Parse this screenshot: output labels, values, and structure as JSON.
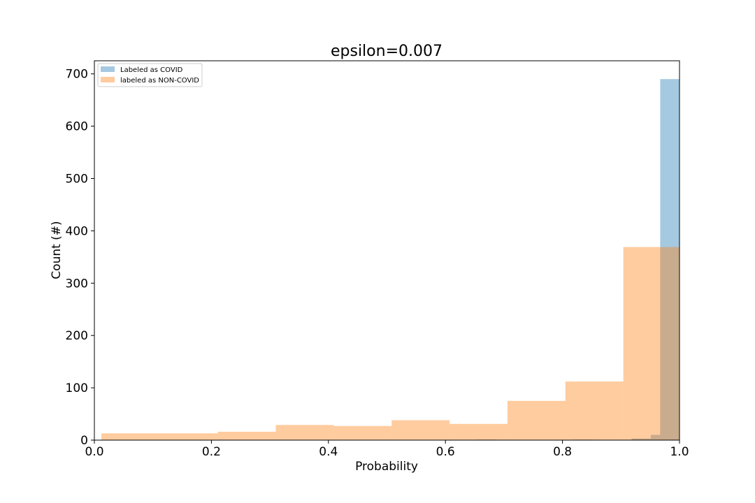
{
  "chart_data": {
    "type": "bar",
    "title": "epsilon=0.007",
    "xlabel": "Probability",
    "ylabel": "Count (#)",
    "xlim": [
      0.0,
      1.0
    ],
    "ylim": [
      0,
      725
    ],
    "xticks": [
      "0.0",
      "0.2",
      "0.4",
      "0.6",
      "0.8",
      "1.0"
    ],
    "yticks": [
      "0",
      "100",
      "200",
      "300",
      "400",
      "500",
      "600",
      "700"
    ],
    "grid": false,
    "legend_position": "top-left",
    "series": [
      {
        "name": "Labeled as COVID",
        "color": "#1f77b4",
        "opacity": 0.4,
        "bins": [
          {
            "x0": 0.653,
            "x1": 0.686,
            "value": 1
          },
          {
            "x0": 0.819,
            "x1": 0.852,
            "value": 1
          },
          {
            "x0": 0.918,
            "x1": 0.951,
            "value": 3
          },
          {
            "x0": 0.951,
            "x1": 0.967,
            "value": 10
          },
          {
            "x0": 0.967,
            "x1": 1.0,
            "value": 690
          }
        ]
      },
      {
        "name": "labeled as NON-COVID",
        "color": "#ff7f0e",
        "opacity": 0.4,
        "bins": [
          {
            "x0": 0.012,
            "x1": 0.211,
            "value": 13
          },
          {
            "x0": 0.211,
            "x1": 0.31,
            "value": 16
          },
          {
            "x0": 0.31,
            "x1": 0.409,
            "value": 29
          },
          {
            "x0": 0.409,
            "x1": 0.508,
            "value": 27
          },
          {
            "x0": 0.508,
            "x1": 0.607,
            "value": 38
          },
          {
            "x0": 0.607,
            "x1": 0.706,
            "value": 31
          },
          {
            "x0": 0.706,
            "x1": 0.805,
            "value": 75
          },
          {
            "x0": 0.805,
            "x1": 0.904,
            "value": 112
          },
          {
            "x0": 0.904,
            "x1": 1.0,
            "value": 369
          }
        ]
      }
    ]
  }
}
